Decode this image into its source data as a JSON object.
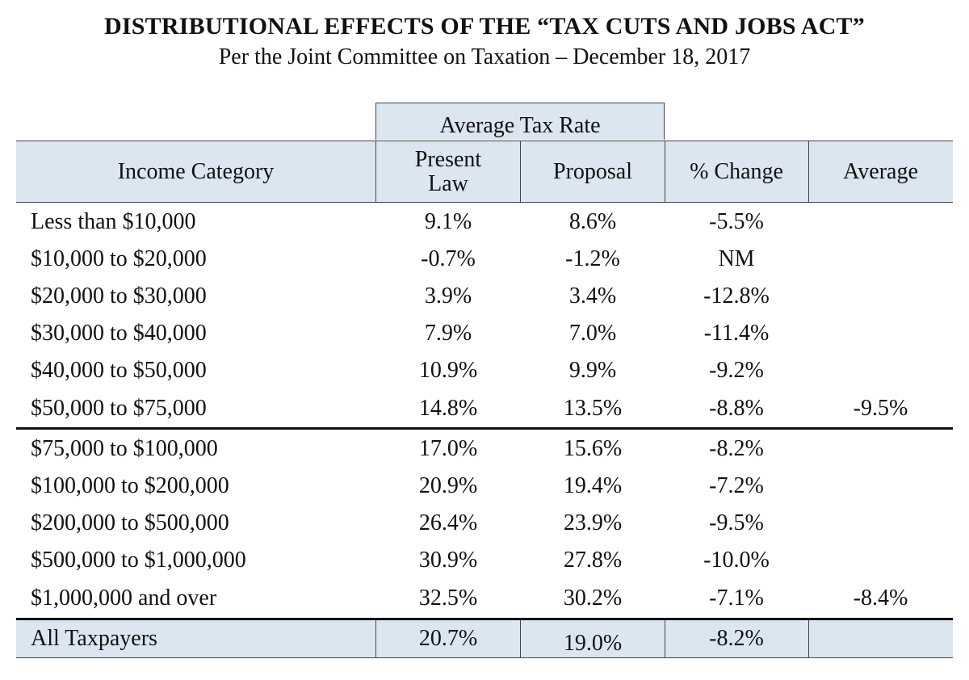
{
  "title": "DISTRIBUTIONAL EFFECTS OF THE “TAX CUTS AND JOBS ACT”",
  "subtitle": "Per the Joint Committee on Taxation – December 18, 2017",
  "table": {
    "group_header": "Average Tax Rate",
    "headers": {
      "income_category": "Income Category",
      "present_law": "Present Law",
      "proposal": "Proposal",
      "pct_change": "% Change",
      "average": "Average"
    },
    "rows": [
      {
        "category": "Less than $10,000",
        "present": "9.1%",
        "proposal": "8.6%",
        "change": "-5.5%",
        "average": ""
      },
      {
        "category": "$10,000 to $20,000",
        "present": "-0.7%",
        "proposal": "-1.2%",
        "change": "NM",
        "average": ""
      },
      {
        "category": "$20,000 to $30,000",
        "present": "3.9%",
        "proposal": "3.4%",
        "change": "-12.8%",
        "average": ""
      },
      {
        "category": "$30,000 to $40,000",
        "present": "7.9%",
        "proposal": "7.0%",
        "change": "-11.4%",
        "average": ""
      },
      {
        "category": "$40,000 to $50,000",
        "present": "10.9%",
        "proposal": "9.9%",
        "change": "-9.2%",
        "average": ""
      },
      {
        "category": "$50,000 to $75,000",
        "present": "14.8%",
        "proposal": "13.5%",
        "change": "-8.8%",
        "average": "-9.5%"
      },
      {
        "category": "$75,000 to $100,000",
        "present": "17.0%",
        "proposal": "15.6%",
        "change": "-8.2%",
        "average": ""
      },
      {
        "category": "$100,000 to $200,000",
        "present": "20.9%",
        "proposal": "19.4%",
        "change": "-7.2%",
        "average": ""
      },
      {
        "category": "$200,000 to $500,000",
        "present": "26.4%",
        "proposal": "23.9%",
        "change": "-9.5%",
        "average": ""
      },
      {
        "category": "$500,000 to $1,000,000",
        "present": "30.9%",
        "proposal": "27.8%",
        "change": "-10.0%",
        "average": ""
      },
      {
        "category": "$1,000,000 and over",
        "present": "32.5%",
        "proposal": "30.2%",
        "change": "-7.1%",
        "average": "-8.4%"
      }
    ],
    "total": {
      "category": "All Taxpayers",
      "present": "20.7%",
      "proposal": "19.0%",
      "change": "-8.2%",
      "average": ""
    }
  }
}
